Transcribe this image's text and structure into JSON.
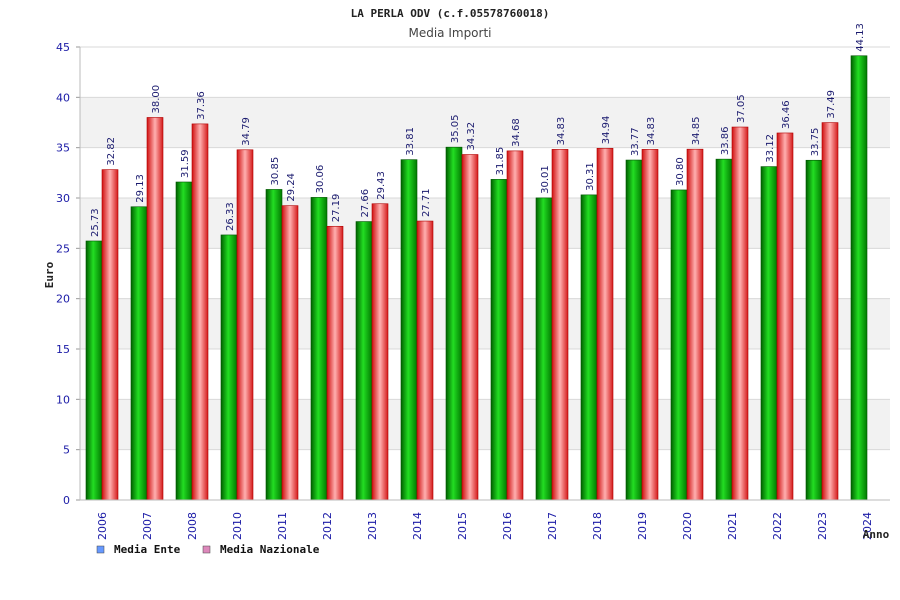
{
  "chart_data": {
    "type": "bar",
    "title": "LA PERLA ODV (c.f.05578760018)",
    "subtitle": "Media Importi",
    "xlabel": "Anno",
    "ylabel": "Euro",
    "ylim": [
      0,
      45
    ],
    "yticks": [
      0,
      5,
      10,
      15,
      20,
      25,
      30,
      35,
      40,
      45
    ],
    "categories": [
      "2006",
      "2007",
      "2008",
      "2010",
      "2011",
      "2012",
      "2013",
      "2014",
      "2015",
      "2016",
      "2017",
      "2018",
      "2019",
      "2020",
      "2021",
      "2022",
      "2023",
      "2024"
    ],
    "series": [
      {
        "name": "Media Ente",
        "color": "#00a000",
        "legend_color": "#6699ff",
        "values": [
          25.73,
          29.13,
          31.59,
          26.33,
          30.85,
          30.06,
          27.66,
          33.81,
          35.05,
          31.85,
          30.01,
          30.31,
          33.77,
          30.8,
          33.86,
          33.12,
          33.75,
          44.13
        ],
        "labels": [
          "25.73",
          "29.13",
          "31.59",
          "26.33",
          "30.85",
          "30.06",
          "27.66",
          "33.81",
          "35.05",
          "31.85",
          "30.01",
          "30.31",
          "33.77",
          "30.80",
          "33.86",
          "33.12",
          "33.75",
          "44.13"
        ]
      },
      {
        "name": "Media Nazionale",
        "color": "#e02020",
        "legend_color": "#dd88bb",
        "values": [
          32.82,
          38.0,
          37.36,
          34.79,
          29.24,
          27.19,
          29.43,
          27.71,
          34.32,
          34.68,
          34.83,
          34.94,
          34.83,
          34.85,
          37.05,
          36.46,
          37.49,
          null
        ],
        "labels": [
          "32.82",
          "38.00",
          "37.36",
          "34.79",
          "29.24",
          "27.19",
          "29.43",
          "27.71",
          "34.32",
          "34.68",
          "34.83",
          "34.94",
          "34.83",
          "34.85",
          "37.05",
          "36.46",
          "37.49",
          null
        ]
      }
    ],
    "grid": true,
    "legend_position": "bottom-left"
  }
}
